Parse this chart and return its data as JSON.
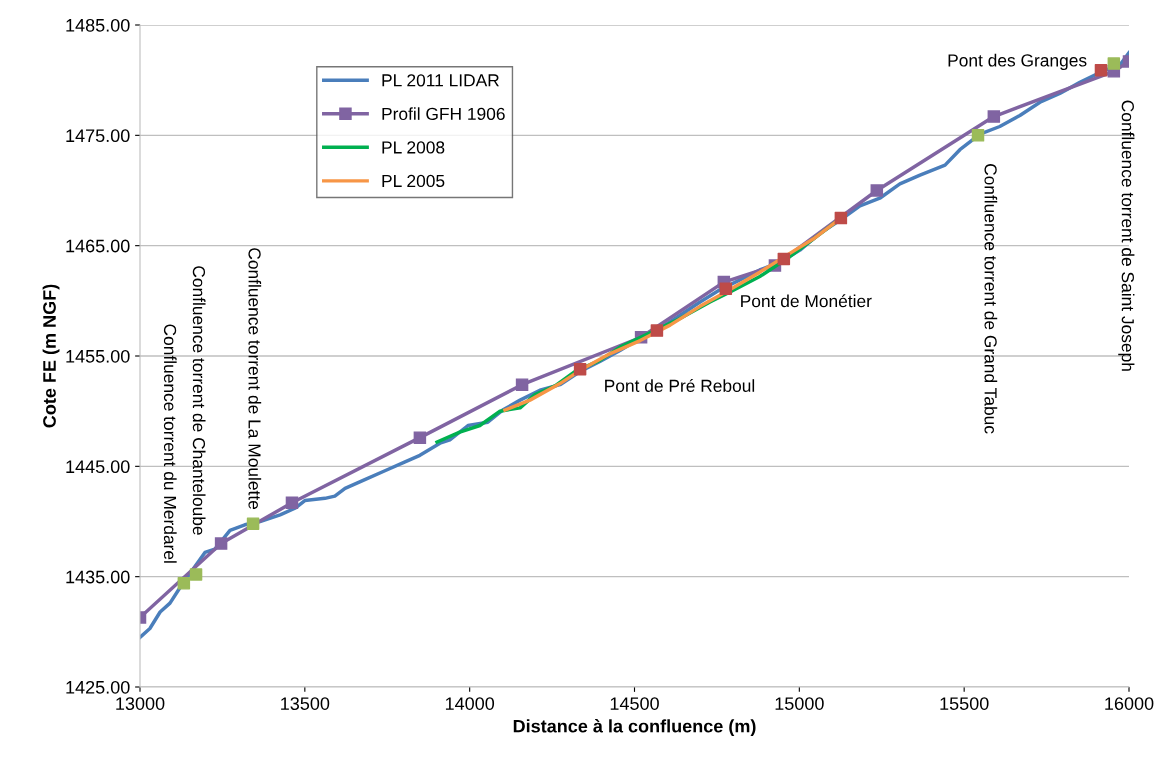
{
  "chart_data": {
    "type": "line",
    "xlabel": "Distance à la confluence (m)",
    "ylabel": "Cote FE (m NGF)",
    "xlim": [
      13000,
      16000
    ],
    "xticks": [
      13000,
      13500,
      14000,
      14500,
      15000,
      15500,
      16000
    ],
    "ylim": [
      1425,
      1485
    ],
    "yticks": [
      {
        "value": 1425,
        "label": "1425.00"
      },
      {
        "value": 1435,
        "label": "1435.00"
      },
      {
        "value": 1445,
        "label": "1445.00"
      },
      {
        "value": 1455,
        "label": "1455.00"
      },
      {
        "value": 1465,
        "label": "1465.00"
      },
      {
        "value": 1475,
        "label": "1475.00"
      },
      {
        "value": 1485,
        "label": "1485.00"
      }
    ],
    "grid": "y",
    "legend": "top left",
    "marker": "none",
    "series": [
      {
        "name": "PL 2011 LIDAR",
        "color": "#4a7ebb",
        "x": [
          13000,
          13030,
          13061,
          13091,
          13121,
          13152,
          13197,
          13227,
          13273,
          13318,
          13364,
          13425,
          13470,
          13500,
          13561,
          13591,
          13622,
          13682,
          13743,
          13804,
          13849,
          13910,
          13940,
          13995,
          14055,
          14100,
          14153,
          14213,
          14274,
          14335,
          14395,
          14456,
          14517,
          14577,
          14638,
          14699,
          14759,
          14820,
          14880,
          14941,
          15002,
          15062,
          15123,
          15184,
          15244,
          15305,
          15366,
          15442,
          15487,
          15548,
          15608,
          15669,
          15730,
          15790,
          15851,
          15912,
          15973,
          16000
        ],
        "values": [
          1429.5,
          1430.3,
          1431.8,
          1432.6,
          1434.0,
          1435.3,
          1437.2,
          1437.5,
          1439.2,
          1439.7,
          1440.0,
          1440.6,
          1441.2,
          1441.9,
          1442.1,
          1442.3,
          1443.0,
          1443.8,
          1444.6,
          1445.4,
          1446.0,
          1447.1,
          1447.4,
          1448.7,
          1449.0,
          1450.1,
          1451.0,
          1451.9,
          1452.4,
          1453.6,
          1454.5,
          1455.5,
          1456.6,
          1457.5,
          1458.7,
          1459.9,
          1461.0,
          1461.9,
          1462.8,
          1463.5,
          1464.6,
          1466.1,
          1467.3,
          1468.6,
          1469.3,
          1470.6,
          1471.4,
          1472.3,
          1473.7,
          1475.1,
          1475.8,
          1476.8,
          1478.0,
          1478.8,
          1479.8,
          1480.7,
          1481.4,
          1482.5
        ]
      },
      {
        "name": "Profil GFH 1906",
        "color": "#8064a2",
        "marker": "square",
        "x": [
          13000,
          13246,
          13461,
          13849,
          14159,
          14520,
          14771,
          14926,
          15235,
          15590,
          15954,
          16000
        ],
        "values": [
          1431.3,
          1438.0,
          1441.7,
          1447.6,
          1452.4,
          1456.7,
          1461.7,
          1463.2,
          1470.0,
          1476.7,
          1480.8,
          1481.7
        ]
      },
      {
        "name": "PL 2008",
        "color": "#00b050",
        "x": [
          13901,
          13970,
          14031,
          14092,
          14153,
          14198,
          14259,
          14320,
          14395,
          14456,
          14547,
          14638,
          14729,
          14790,
          14880,
          14971,
          15047,
          15126
        ],
        "values": [
          1447.2,
          1448.1,
          1448.7,
          1450.0,
          1450.3,
          1451.5,
          1452.3,
          1453.6,
          1454.6,
          1455.8,
          1457.1,
          1458.4,
          1459.9,
          1460.8,
          1462.2,
          1464.0,
          1465.7,
          1467.5
        ]
      },
      {
        "name": "PL 2005",
        "color": "#f79646",
        "x": [
          14107,
          14183,
          14274,
          14335,
          14425,
          14517,
          14608,
          14699,
          14777,
          14880,
          14971,
          15047,
          15126
        ],
        "values": [
          1450.1,
          1451.0,
          1452.5,
          1453.7,
          1455.2,
          1456.4,
          1457.8,
          1459.5,
          1460.8,
          1462.6,
          1464.3,
          1465.7,
          1467.5
        ]
      },
      {
        "type": "scatter",
        "color": "#9bbb59",
        "marker": "square",
        "x": [
          13133,
          13170,
          13343,
          15542,
          15954
        ],
        "values": [
          1434.4,
          1435.2,
          1439.8,
          1475.0,
          1481.5
        ]
      },
      {
        "type": "scatter",
        "color": "#be4b48",
        "marker": "square",
        "x": [
          14335,
          14568,
          14777,
          14953,
          15126,
          15915
        ],
        "values": [
          1453.8,
          1457.3,
          1461.1,
          1463.8,
          1467.5,
          1480.9
        ]
      }
    ],
    "annotations": [
      {
        "text": "Confluence torrent du Merdarel",
        "x": 13133,
        "y": 1434.4
      },
      {
        "text": "Confluence torrent de Chanteloube",
        "x": 13170,
        "y": 1435.2
      },
      {
        "text": "Confluence torrent de La Moulette",
        "x": 13343,
        "y": 1439.8
      },
      {
        "text": "Confluence torrent de Grand Tabuc",
        "x": 15542,
        "y": 1475.0
      },
      {
        "text": "Confluence torrent de Saint Joseph",
        "x": 15954,
        "y": 1481.5
      },
      {
        "text": "Pont de Pré Reboul",
        "x": 14335,
        "y": 1453.8
      },
      {
        "text": "Pont de Monétier",
        "x": 14777,
        "y": 1461.1
      },
      {
        "text": "Pont des Granges",
        "x": 15915,
        "y": 1480.9
      }
    ]
  }
}
